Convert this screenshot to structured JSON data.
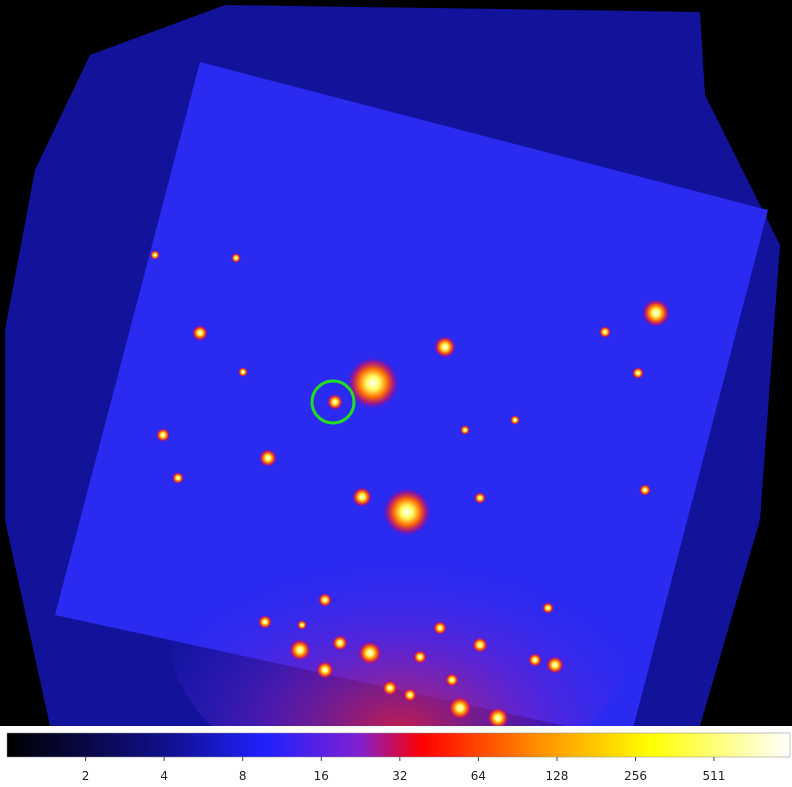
{
  "chart_data": {
    "type": "colorbar",
    "xlim": [
      1,
      1000
    ],
    "log_scale": true,
    "xticks": [
      2,
      4,
      8,
      16,
      32,
      64,
      128,
      256,
      511
    ]
  }
}
